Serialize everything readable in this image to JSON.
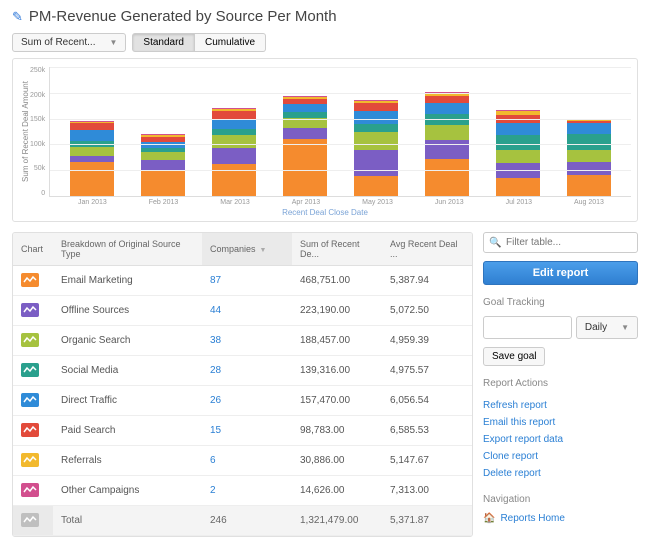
{
  "title": "PM-Revenue Generated by Source Per Month",
  "metric_dropdown": "Sum of Recent...",
  "view_buttons": {
    "standard": "Standard",
    "cumulative": "Cumulative",
    "active": "standard"
  },
  "chart": {
    "type": "stacked-bar",
    "y_label": "Sum of Recent Deal Amount",
    "x_label": "Recent Deal Close Date",
    "ylim": [
      0,
      250000
    ],
    "y_ticks": [
      "250k",
      "200k",
      "150k",
      "100k",
      "50k",
      "0"
    ],
    "grid_color": "#eeeeee",
    "background_color": "#ffffff",
    "categories": [
      "Jan 2013",
      "Feb 2013",
      "Mar 2013",
      "Apr 2013",
      "May 2013",
      "Jun 2013",
      "Jul 2013",
      "Aug 2013"
    ],
    "series_colors": {
      "email": "#f58b2e",
      "offline": "#7b5ec4",
      "organic": "#a6c23f",
      "social": "#2aa08d",
      "direct": "#2f8bd8",
      "paid": "#e24a3b",
      "referrals": "#f2b92e",
      "other": "#d24f8e"
    },
    "stacks": [
      {
        "email": 65000,
        "offline": 12000,
        "organic": 18000,
        "social": 10000,
        "direct": 22000,
        "paid": 14000,
        "referrals": 2000,
        "other": 2000
      },
      {
        "email": 48000,
        "offline": 22000,
        "organic": 14000,
        "social": 8000,
        "direct": 12000,
        "paid": 10000,
        "referrals": 3000,
        "other": 2000
      },
      {
        "email": 62000,
        "offline": 30000,
        "organic": 25000,
        "social": 12000,
        "direct": 20000,
        "paid": 15000,
        "referrals": 3000,
        "other": 2000
      },
      {
        "email": 110000,
        "offline": 20000,
        "organic": 20000,
        "social": 12000,
        "direct": 15000,
        "paid": 10000,
        "referrals": 3000,
        "other": 2000
      },
      {
        "email": 38000,
        "offline": 50000,
        "organic": 35000,
        "social": 15000,
        "direct": 25000,
        "paid": 15000,
        "referrals": 5000,
        "other": 2000
      },
      {
        "email": 72000,
        "offline": 35000,
        "organic": 30000,
        "social": 20000,
        "direct": 22000,
        "paid": 14000,
        "referrals": 5000,
        "other": 2000
      },
      {
        "email": 35000,
        "offline": 28000,
        "organic": 25000,
        "social": 30000,
        "direct": 22000,
        "paid": 16000,
        "referrals": 7000,
        "other": 2000
      },
      {
        "email": 40000,
        "offline": 26000,
        "organic": 22000,
        "social": 32000,
        "direct": 20000,
        "paid": 5000,
        "referrals": 3000,
        "other": 1000
      }
    ]
  },
  "table": {
    "columns": {
      "chart": "Chart",
      "breakdown": "Breakdown of Original Source Type",
      "companies": "Companies",
      "sum": "Sum of Recent De...",
      "avg": "Avg Recent Deal ..."
    },
    "sort_column": "companies",
    "rows": [
      {
        "chip": "#f58b2e",
        "name": "Email Marketing",
        "companies": "87",
        "sum": "468,751.00",
        "avg": "5,387.94"
      },
      {
        "chip": "#7b5ec4",
        "name": "Offline Sources",
        "companies": "44",
        "sum": "223,190.00",
        "avg": "5,072.50"
      },
      {
        "chip": "#a6c23f",
        "name": "Organic Search",
        "companies": "38",
        "sum": "188,457.00",
        "avg": "4,959.39"
      },
      {
        "chip": "#2aa08d",
        "name": "Social Media",
        "companies": "28",
        "sum": "139,316.00",
        "avg": "4,975.57"
      },
      {
        "chip": "#2f8bd8",
        "name": "Direct Traffic",
        "companies": "26",
        "sum": "157,470.00",
        "avg": "6,056.54"
      },
      {
        "chip": "#e24a3b",
        "name": "Paid Search",
        "companies": "15",
        "sum": "98,783.00",
        "avg": "6,585.53"
      },
      {
        "chip": "#f2b92e",
        "name": "Referrals",
        "companies": "6",
        "sum": "30,886.00",
        "avg": "5,147.67"
      },
      {
        "chip": "#d24f8e",
        "name": "Other Campaigns",
        "companies": "2",
        "sum": "14,626.00",
        "avg": "7,313.00"
      }
    ],
    "total": {
      "chip": "#bfbfbf",
      "name": "Total",
      "companies": "246",
      "sum": "1,321,479.00",
      "avg": "5,371.87"
    }
  },
  "sidebar": {
    "filter_placeholder": "Filter table...",
    "edit_report": "Edit report",
    "goal_tracking_title": "Goal Tracking",
    "goal_period": "Daily",
    "save_goal": "Save goal",
    "report_actions_title": "Report Actions",
    "actions": {
      "refresh": "Refresh report",
      "email": "Email this report",
      "export": "Export report data",
      "clone": "Clone report",
      "delete": "Delete report"
    },
    "navigation_title": "Navigation",
    "reports_home": "Reports Home"
  }
}
